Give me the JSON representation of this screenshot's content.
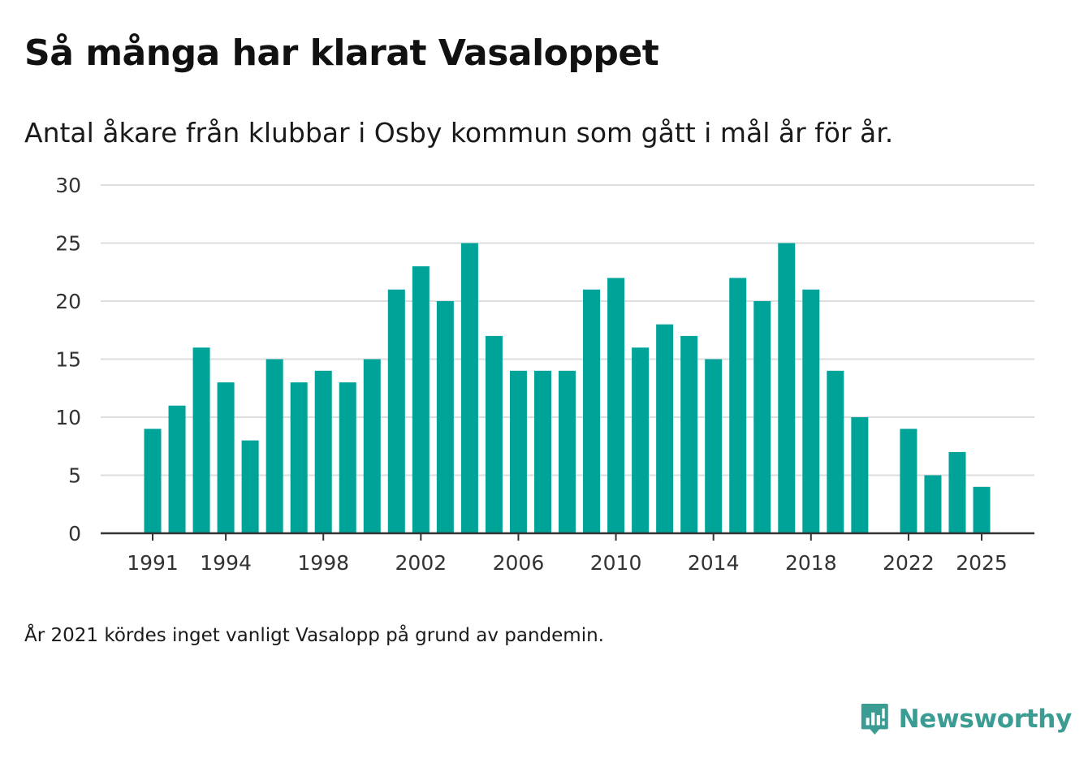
{
  "title": "Så många har klarat Vasaloppet",
  "subtitle": "Antal åkare från klubbar i Osby kommun som gått i mål år för år.",
  "footnote": "År 2021 kördes inget vanligt Vasalopp på grund av pandemin.",
  "brand": {
    "name": "Newsworthy",
    "icon": "newsworthy-logo-icon",
    "color": "#3a9c92"
  },
  "colors": {
    "bar": "#00a398",
    "grid": "#dddddd",
    "axis": "#333333"
  },
  "chart_data": {
    "type": "bar",
    "title": "Så många har klarat Vasaloppet",
    "xlabel": "",
    "ylabel": "",
    "ylim": [
      0,
      30
    ],
    "yticks": [
      0,
      5,
      10,
      15,
      20,
      25,
      30
    ],
    "xticks": [
      "1991",
      "1994",
      "1998",
      "2002",
      "2006",
      "2010",
      "2014",
      "2018",
      "2022",
      "2025"
    ],
    "grid": true,
    "categories": [
      1991,
      1992,
      1993,
      1994,
      1995,
      1996,
      1997,
      1998,
      1999,
      2000,
      2001,
      2002,
      2003,
      2004,
      2005,
      2006,
      2007,
      2008,
      2009,
      2010,
      2011,
      2012,
      2013,
      2014,
      2015,
      2016,
      2017,
      2018,
      2019,
      2020,
      2021,
      2022,
      2023,
      2024,
      2025
    ],
    "values": [
      9,
      11,
      16,
      13,
      8,
      15,
      13,
      14,
      13,
      15,
      21,
      23,
      20,
      25,
      17,
      14,
      14,
      14,
      21,
      22,
      16,
      18,
      17,
      15,
      22,
      20,
      25,
      21,
      14,
      10,
      null,
      9,
      5,
      7,
      4
    ]
  }
}
